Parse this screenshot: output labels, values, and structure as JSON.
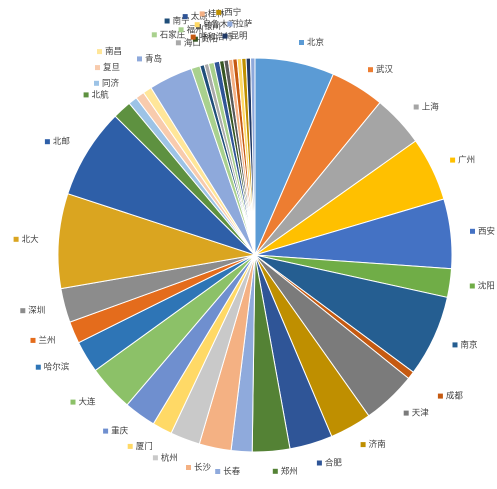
{
  "chart_data": {
    "type": "pie",
    "title": "",
    "slices": [
      {
        "label": "北京",
        "value": 7.2,
        "color": "#5B9BD5"
      },
      {
        "label": "武汉",
        "value": 4.9,
        "color": "#ED7D31"
      },
      {
        "label": "上海",
        "value": 4.7,
        "color": "#A5A5A5"
      },
      {
        "label": "广州",
        "value": 5.8,
        "color": "#FFC000"
      },
      {
        "label": "西安",
        "value": 6.3,
        "color": "#4472C4"
      },
      {
        "label": "沈阳",
        "value": 2.6,
        "color": "#70AD47"
      },
      {
        "label": "南京",
        "value": 7.4,
        "color": "#255E91"
      },
      {
        "label": "成都",
        "value": 0.7,
        "color": "#C55A11"
      },
      {
        "label": "天津",
        "value": 4.9,
        "color": "#7B7B7B"
      },
      {
        "label": "济南",
        "value": 3.8,
        "color": "#BF8F00"
      },
      {
        "label": "合肥",
        "value": 3.9,
        "color": "#2F5597"
      },
      {
        "label": "郑州",
        "value": 3.4,
        "color": "#548235"
      },
      {
        "label": "长春",
        "value": 1.9,
        "color": "#8FAADC"
      },
      {
        "label": "长沙",
        "value": 2.9,
        "color": "#F4B183"
      },
      {
        "label": "杭州",
        "value": 2.7,
        "color": "#C9C9C9"
      },
      {
        "label": "厦门",
        "value": 1.8,
        "color": "#FFD966"
      },
      {
        "label": "重庆",
        "value": 2.9,
        "color": "#6F8FCF"
      },
      {
        "label": "大连",
        "value": 4.2,
        "color": "#8CC168"
      },
      {
        "label": "哈尔滨",
        "value": 2.9,
        "color": "#2E75B6"
      },
      {
        "label": "兰州",
        "value": 2.0,
        "color": "#E46C1C"
      },
      {
        "label": "深圳",
        "value": 3.1,
        "color": "#8C8C8C"
      },
      {
        "label": "北大",
        "value": 8.6,
        "color": "#DAA520"
      },
      {
        "label": "北邮",
        "value": 8.2,
        "color": "#2E5FA8"
      },
      {
        "label": "北航",
        "value": 1.7,
        "color": "#5E9140"
      },
      {
        "label": "同济",
        "value": 0.8,
        "color": "#9DC3E6"
      },
      {
        "label": "复旦",
        "value": 0.8,
        "color": "#F8CBAD"
      },
      {
        "label": "南昌",
        "value": 0.8,
        "color": "#FFE699"
      },
      {
        "label": "青岛",
        "value": 4.0,
        "color": "#8EA9DB"
      },
      {
        "label": "石家庄",
        "value": 0.8,
        "color": "#A9D18E"
      },
      {
        "label": "南宁",
        "value": 0.4,
        "color": "#1F4E79"
      },
      {
        "label": "海口",
        "value": 0.4,
        "color": "#A9A9A9"
      },
      {
        "label": "福州",
        "value": 0.5,
        "color": "#A8D08D"
      },
      {
        "label": "太原",
        "value": 0.5,
        "color": "#2F5496"
      },
      {
        "label": "贵阳",
        "value": 0.4,
        "color": "#375623"
      },
      {
        "label": "银川",
        "value": 0.4,
        "color": "#595959"
      },
      {
        "label": "桂林",
        "value": 0.4,
        "color": "#F4B084"
      },
      {
        "label": "呼和浩特",
        "value": 0.4,
        "color": "#C65911"
      },
      {
        "label": "乌鲁木齐",
        "value": 0.4,
        "color": "#FFD966"
      },
      {
        "label": "西宁",
        "value": 0.4,
        "color": "#BF9000"
      },
      {
        "label": "昆明",
        "value": 0.4,
        "color": "#203864"
      },
      {
        "label": "拉萨",
        "value": 0.4,
        "color": "#8EA9DB"
      }
    ],
    "legend": "labels-outside",
    "start_angle_deg": 0,
    "direction": "clockwise"
  }
}
